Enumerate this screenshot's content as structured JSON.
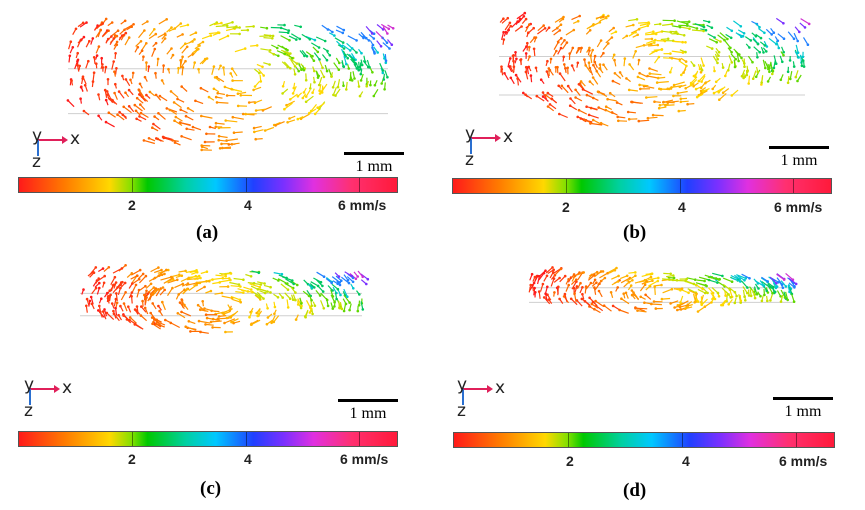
{
  "panels": [
    {
      "label": "(a)",
      "scale_bar": "1 mm",
      "axes": {
        "x": "x",
        "y": "y",
        "z": "z"
      },
      "colorbar": {
        "ticks": [
          "2",
          "4",
          "6 mm/s"
        ],
        "tick_values": [
          2,
          4,
          6
        ],
        "max": 6.6
      }
    },
    {
      "label": "(b)",
      "scale_bar": "1 mm",
      "axes": {
        "x": "x",
        "y": "y",
        "z": "z"
      },
      "colorbar": {
        "ticks": [
          "2",
          "4",
          "6 mm/s"
        ],
        "tick_values": [
          2,
          4,
          6
        ],
        "max": 6.6
      }
    },
    {
      "label": "(c)",
      "scale_bar": "1 mm",
      "axes": {
        "x": "x",
        "y": "y",
        "z": "z"
      },
      "colorbar": {
        "ticks": [
          "2",
          "4",
          "6 mm/s"
        ],
        "tick_values": [
          2,
          4,
          6
        ],
        "max": 6.6
      }
    },
    {
      "label": "(d)",
      "scale_bar": "1 mm",
      "axes": {
        "x": "x",
        "y": "y",
        "z": "z"
      },
      "colorbar": {
        "ticks": [
          "2",
          "4",
          "6 mm/s"
        ],
        "tick_values": [
          2,
          4,
          6
        ],
        "max": 6.6
      }
    }
  ],
  "colors": {
    "slow": "#ff1a1a",
    "mid_low": "#ff7a00",
    "mid": "#ffd800",
    "green": "#00c800",
    "cyan": "#00c8ff",
    "blue": "#2040ff",
    "violet": "#7a30ff",
    "fast": "#ff1a3a",
    "axis_x": "#e0205a",
    "axis_z": "#2a6fd0"
  }
}
